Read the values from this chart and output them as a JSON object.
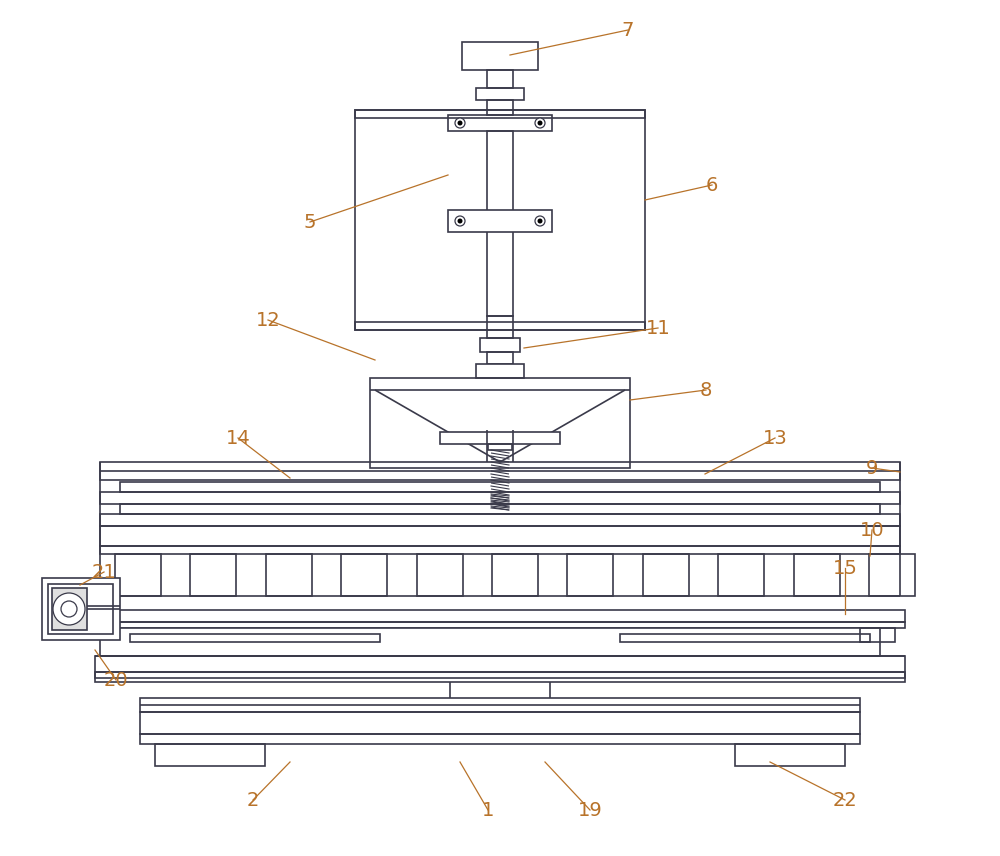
{
  "bg_color": "#ffffff",
  "line_color": "#3a3a4a",
  "label_color": "#b8732a",
  "figsize": [
    10.0,
    8.56
  ],
  "dpi": 100
}
